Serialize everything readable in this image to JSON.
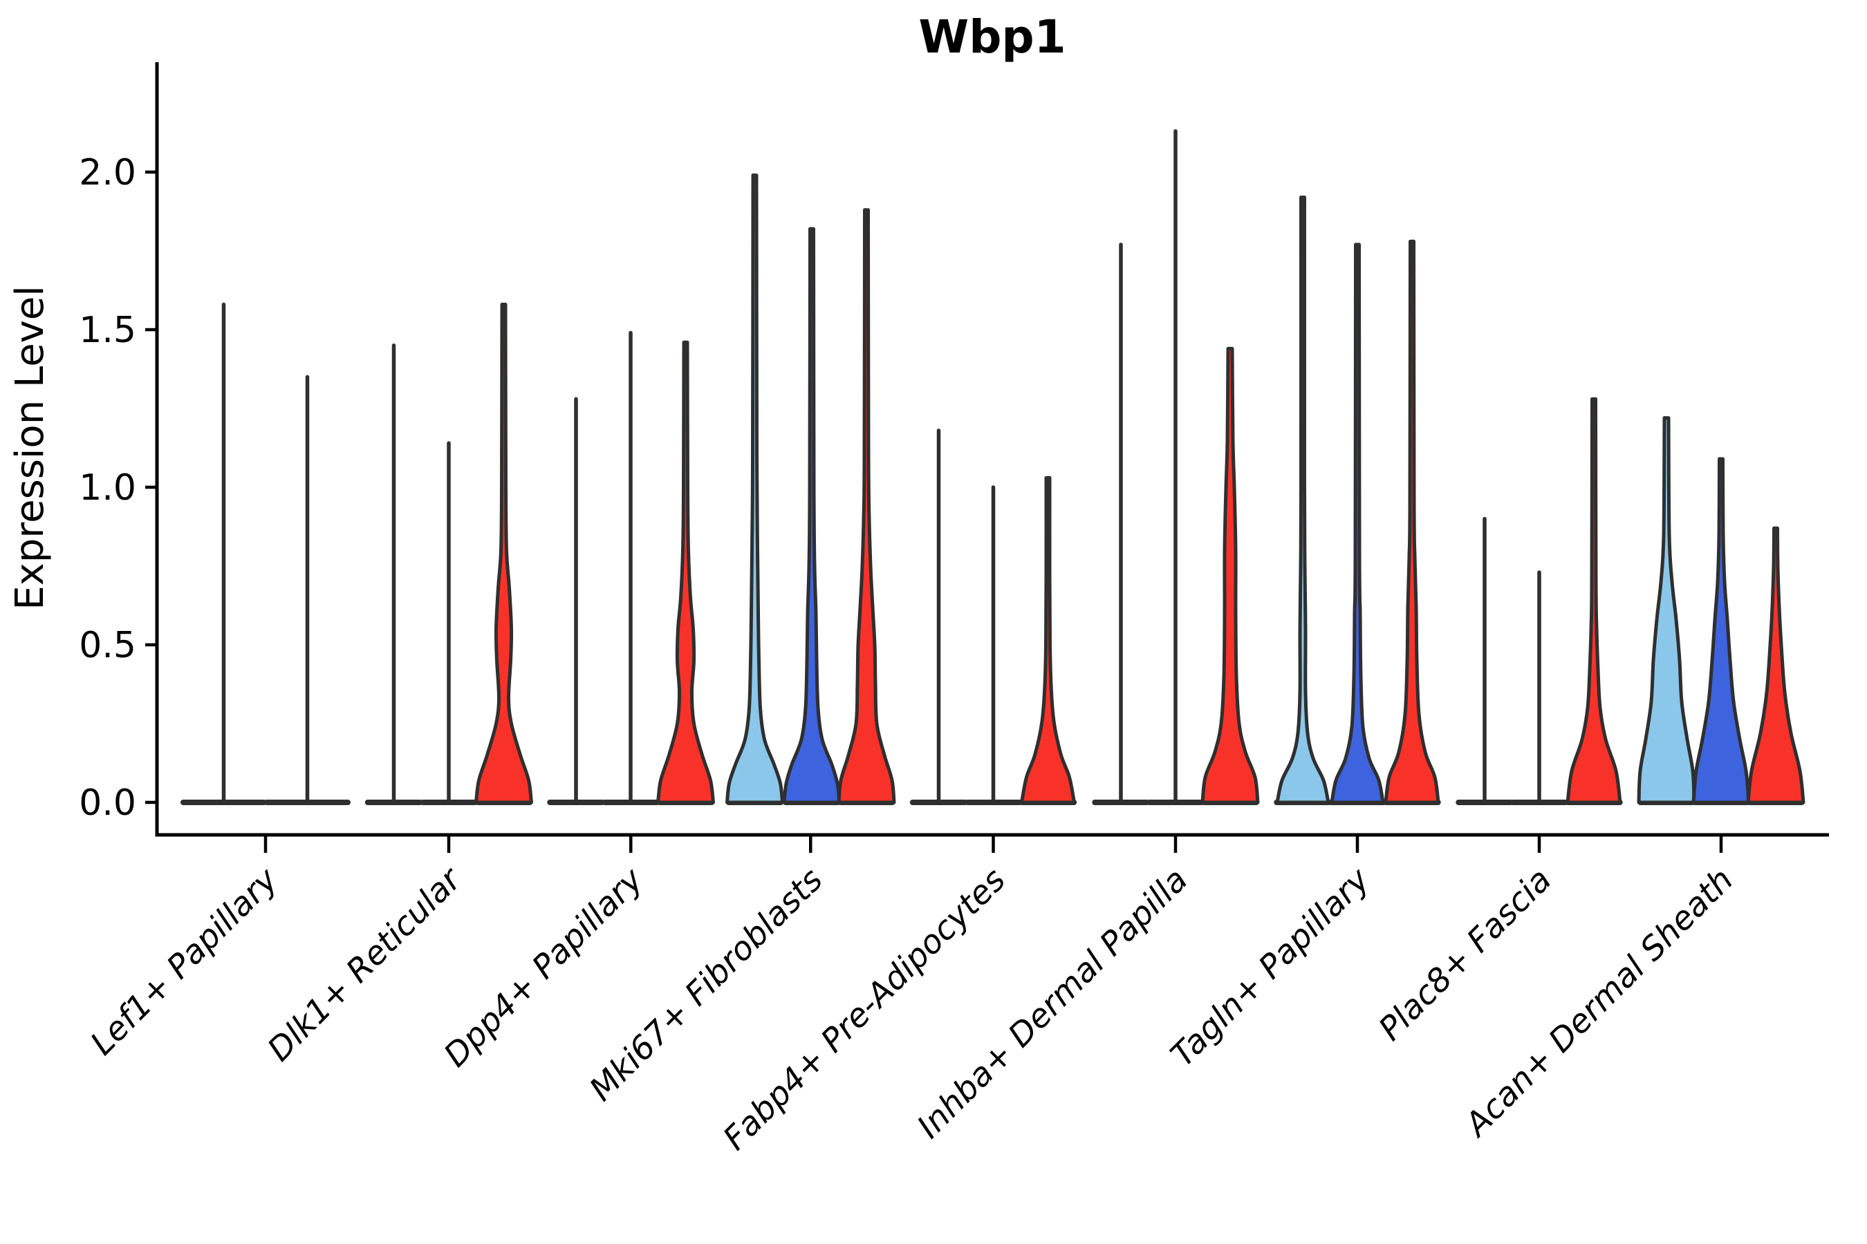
{
  "chart_data": {
    "type": "violin",
    "title": "Wbp1",
    "xlabel": "",
    "ylabel": "Expression Level",
    "ylim": [
      -0.1,
      2.35
    ],
    "yticks": [
      {
        "label": "0.0",
        "value": 0.0
      },
      {
        "label": "0.5",
        "value": 0.5
      },
      {
        "label": "1.0",
        "value": 1.0
      },
      {
        "label": "1.5",
        "value": 1.5
      },
      {
        "label": "2.0",
        "value": 2.0
      }
    ],
    "grid": false,
    "legend": "none",
    "categories": [
      "Lef1+ Papillary",
      "Dlk1+ Reticular",
      "Dpp4+ Papillary",
      "Mki67+ Fibroblasts",
      "Fabp4+ Pre-Adipocytes",
      "Inhba+ Dermal Papilla",
      "Tagln+ Papillary",
      "Plac8+ Fascia",
      "Acan+ Dermal Sheath"
    ],
    "colors": {
      "light_blue": "#8BC7EA",
      "dark_blue": "#3E63DE",
      "red": "#F93229",
      "outline": "#2F2F2F"
    },
    "groups": [
      {
        "category": "Lef1+ Papillary",
        "violins": [
          {
            "x": 323.5,
            "kind": "spike",
            "color": "none",
            "peak": 1.58
          },
          {
            "x": 444.5,
            "kind": "spike",
            "color": "none",
            "peak": 1.35
          }
        ]
      },
      {
        "category": "Dlk1+ Reticular",
        "violins": [
          {
            "x": 569.5,
            "kind": "spike",
            "color": "none",
            "peak": 1.45
          },
          {
            "x": 649.0,
            "kind": "spike",
            "color": "none",
            "peak": 1.14
          },
          {
            "x": 728.5,
            "kind": "violin",
            "color": "red",
            "peak": 1.58,
            "profile": [
              [
                0,
                40
              ],
              [
                0.07,
                36
              ],
              [
                0.15,
                24
              ],
              [
                0.25,
                11
              ],
              [
                0.33,
                7
              ],
              [
                0.45,
                10
              ],
              [
                0.55,
                11
              ],
              [
                0.68,
                8
              ],
              [
                0.8,
                4
              ],
              [
                1.0,
                3
              ],
              [
                1.58,
                2.5
              ]
            ]
          }
        ]
      },
      {
        "category": "Dpp4+ Papillary",
        "violins": [
          {
            "x": 833.0,
            "kind": "spike",
            "color": "none",
            "peak": 1.28
          },
          {
            "x": 912.0,
            "kind": "spike",
            "color": "none",
            "peak": 1.49
          },
          {
            "x": 991.5,
            "kind": "violin",
            "color": "red",
            "peak": 1.46,
            "profile": [
              [
                0,
                40
              ],
              [
                0.07,
                36
              ],
              [
                0.15,
                24
              ],
              [
                0.25,
                12
              ],
              [
                0.35,
                9
              ],
              [
                0.45,
                12
              ],
              [
                0.55,
                11
              ],
              [
                0.65,
                7
              ],
              [
                0.8,
                4
              ],
              [
                1.0,
                3
              ],
              [
                1.46,
                2.5
              ]
            ]
          }
        ]
      },
      {
        "category": "Mki67+ Fibroblasts",
        "violins": [
          {
            "x": 1091.5,
            "kind": "violin",
            "color": "light_blue",
            "peak": 1.99,
            "profile": [
              [
                0,
                40
              ],
              [
                0.06,
                37
              ],
              [
                0.12,
                28
              ],
              [
                0.2,
                14
              ],
              [
                0.3,
                8
              ],
              [
                0.45,
                6
              ],
              [
                0.6,
                5
              ],
              [
                0.8,
                4
              ],
              [
                1.1,
                3
              ],
              [
                1.99,
                2.5
              ]
            ]
          },
          {
            "x": 1174.0,
            "kind": "violin",
            "color": "dark_blue",
            "peak": 1.82,
            "profile": [
              [
                0,
                40
              ],
              [
                0.06,
                37
              ],
              [
                0.12,
                29
              ],
              [
                0.2,
                15
              ],
              [
                0.3,
                9
              ],
              [
                0.45,
                7
              ],
              [
                0.6,
                6
              ],
              [
                0.75,
                4
              ],
              [
                1.0,
                3
              ],
              [
                1.82,
                2.5
              ]
            ]
          },
          {
            "x": 1253.0,
            "kind": "violin",
            "color": "red",
            "peak": 1.88,
            "profile": [
              [
                0,
                40
              ],
              [
                0.07,
                37
              ],
              [
                0.15,
                26
              ],
              [
                0.25,
                15
              ],
              [
                0.38,
                13
              ],
              [
                0.5,
                12
              ],
              [
                0.62,
                9
              ],
              [
                0.75,
                6
              ],
              [
                0.9,
                4
              ],
              [
                1.1,
                3
              ],
              [
                1.88,
                2.5
              ]
            ]
          }
        ]
      },
      {
        "category": "Fabp4+ Pre-Adipocytes",
        "violins": [
          {
            "x": 1357.5,
            "kind": "spike",
            "color": "none",
            "peak": 1.18
          },
          {
            "x": 1436.5,
            "kind": "spike",
            "color": "none",
            "peak": 1.0
          },
          {
            "x": 1515.5,
            "kind": "violin",
            "color": "red",
            "peak": 1.03,
            "profile": [
              [
                0,
                38
              ],
              [
                0.08,
                31
              ],
              [
                0.15,
                19
              ],
              [
                0.25,
                9
              ],
              [
                0.35,
                5
              ],
              [
                0.5,
                3
              ],
              [
                0.75,
                2.5
              ],
              [
                1.03,
                2.5
              ]
            ]
          }
        ]
      },
      {
        "category": "Inhba+ Dermal Papilla",
        "violins": [
          {
            "x": 1621.0,
            "kind": "spike",
            "color": "none",
            "peak": 1.77
          },
          {
            "x": 1700.0,
            "kind": "spike",
            "color": "none",
            "peak": 2.13
          },
          {
            "x": 1779.0,
            "kind": "violin",
            "color": "red",
            "peak": 1.44,
            "profile": [
              [
                0,
                40
              ],
              [
                0.08,
                36
              ],
              [
                0.16,
                22
              ],
              [
                0.25,
                13
              ],
              [
                0.4,
                9
              ],
              [
                0.6,
                8
              ],
              [
                0.8,
                8
              ],
              [
                1.0,
                6
              ],
              [
                1.15,
                4
              ],
              [
                1.44,
                3
              ]
            ]
          }
        ]
      },
      {
        "category": "Tagln+ Papillary",
        "violins": [
          {
            "x": 1884.0,
            "kind": "violin",
            "color": "light_blue",
            "peak": 1.92,
            "profile": [
              [
                0,
                37
              ],
              [
                0.07,
                30
              ],
              [
                0.14,
                15
              ],
              [
                0.22,
                7
              ],
              [
                0.35,
                4
              ],
              [
                0.55,
                4
              ],
              [
                0.75,
                3
              ],
              [
                1.0,
                2.5
              ],
              [
                1.92,
                2.5
              ]
            ]
          },
          {
            "x": 1963.0,
            "kind": "violin",
            "color": "dark_blue",
            "peak": 1.77,
            "profile": [
              [
                0,
                37
              ],
              [
                0.07,
                31
              ],
              [
                0.14,
                17
              ],
              [
                0.24,
                8
              ],
              [
                0.4,
                5
              ],
              [
                0.6,
                4
              ],
              [
                0.78,
                3
              ],
              [
                1.77,
                2.5
              ]
            ]
          },
          {
            "x": 2042.0,
            "kind": "violin",
            "color": "red",
            "peak": 1.78,
            "profile": [
              [
                0,
                38
              ],
              [
                0.08,
                33
              ],
              [
                0.16,
                19
              ],
              [
                0.28,
                10
              ],
              [
                0.45,
                7
              ],
              [
                0.62,
                6
              ],
              [
                0.78,
                4
              ],
              [
                0.95,
                3
              ],
              [
                1.78,
                2.5
              ]
            ]
          }
        ]
      },
      {
        "category": "Plac8+ Fascia",
        "violins": [
          {
            "x": 2147.0,
            "kind": "spike",
            "color": "none",
            "peak": 0.9
          },
          {
            "x": 2226.0,
            "kind": "spike",
            "color": "none",
            "peak": 0.73
          },
          {
            "x": 2305.0,
            "kind": "violin",
            "color": "red",
            "peak": 1.28,
            "profile": [
              [
                0,
                38
              ],
              [
                0.1,
                32
              ],
              [
                0.2,
                17
              ],
              [
                0.3,
                9
              ],
              [
                0.42,
                6
              ],
              [
                0.55,
                4
              ],
              [
                0.7,
                3
              ],
              [
                1.28,
                2.5
              ]
            ]
          }
        ]
      },
      {
        "category": "Acan+ Dermal Sheath",
        "violins": [
          {
            "x": 2410.0,
            "kind": "violin",
            "color": "light_blue",
            "peak": 1.22,
            "profile": [
              [
                0,
                40
              ],
              [
                0.1,
                38
              ],
              [
                0.2,
                30
              ],
              [
                0.32,
                22
              ],
              [
                0.45,
                19
              ],
              [
                0.58,
                14
              ],
              [
                0.7,
                8
              ],
              [
                0.85,
                4
              ],
              [
                1.22,
                3
              ]
            ]
          },
          {
            "x": 2489.0,
            "kind": "violin",
            "color": "dark_blue",
            "peak": 1.09,
            "profile": [
              [
                0,
                40
              ],
              [
                0.1,
                36
              ],
              [
                0.2,
                27
              ],
              [
                0.32,
                18
              ],
              [
                0.45,
                13
              ],
              [
                0.58,
                9
              ],
              [
                0.7,
                5
              ],
              [
                0.85,
                3
              ],
              [
                1.09,
                2.5
              ]
            ]
          },
          {
            "x": 2568.0,
            "kind": "violin",
            "color": "red",
            "peak": 0.87,
            "profile": [
              [
                0,
                40
              ],
              [
                0.1,
                35
              ],
              [
                0.22,
                22
              ],
              [
                0.35,
                13
              ],
              [
                0.5,
                8
              ],
              [
                0.62,
                5
              ],
              [
                0.75,
                3
              ],
              [
                0.87,
                2.5
              ]
            ]
          }
        ]
      }
    ]
  }
}
